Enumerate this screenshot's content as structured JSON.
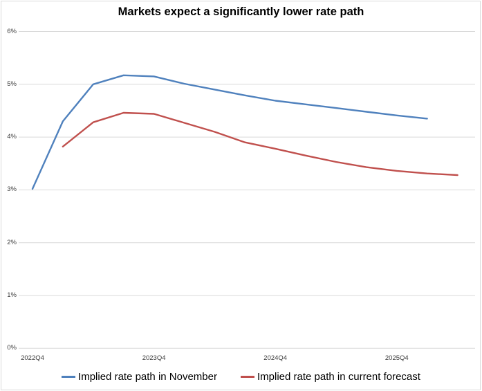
{
  "chart_data": {
    "type": "line",
    "title": "Markets expect a significantly lower rate path",
    "categories": [
      "2022Q4",
      "2023Q1",
      "2023Q2",
      "2023Q3",
      "2023Q4",
      "2024Q1",
      "2024Q2",
      "2024Q3",
      "2024Q4",
      "2025Q1",
      "2025Q2",
      "2025Q3",
      "2025Q4",
      "2026Q1",
      "2026Q2"
    ],
    "series": [
      {
        "name": "Implied rate path in November",
        "color": "#4F81BD",
        "values": [
          3.02,
          4.3,
          5.0,
          5.17,
          5.15,
          5.01,
          4.9,
          4.79,
          4.69,
          4.62,
          4.55,
          4.48,
          4.41,
          4.35,
          null
        ]
      },
      {
        "name": "Implied rate path in current forecast",
        "color": "#C0504D",
        "values": [
          null,
          3.82,
          4.28,
          4.46,
          4.44,
          4.27,
          4.1,
          3.9,
          3.78,
          3.65,
          3.53,
          3.43,
          3.36,
          3.31,
          3.28
        ]
      }
    ],
    "x_ticks": [
      {
        "label": "2022Q4",
        "index": 0
      },
      {
        "label": "2023Q4",
        "index": 4
      },
      {
        "label": "2024Q4",
        "index": 8
      },
      {
        "label": "2025Q4",
        "index": 12
      }
    ],
    "y_ticks": [
      {
        "label": "6%",
        "value": 6
      },
      {
        "label": "5%",
        "value": 5
      },
      {
        "label": "4%",
        "value": 4
      },
      {
        "label": "3%",
        "value": 3
      },
      {
        "label": "2%",
        "value": 2
      },
      {
        "label": "1%",
        "value": 1
      },
      {
        "label": "0%",
        "value": 0
      }
    ],
    "ylim": [
      0,
      6
    ],
    "y_unit": "%",
    "grid": "horizontal",
    "legend_position": "bottom"
  },
  "colors": {
    "gridline": "#d9d9d9",
    "canvas_border": "#d9d9d9",
    "title_text": "#000000",
    "tick_text": "#3b3b3b"
  }
}
